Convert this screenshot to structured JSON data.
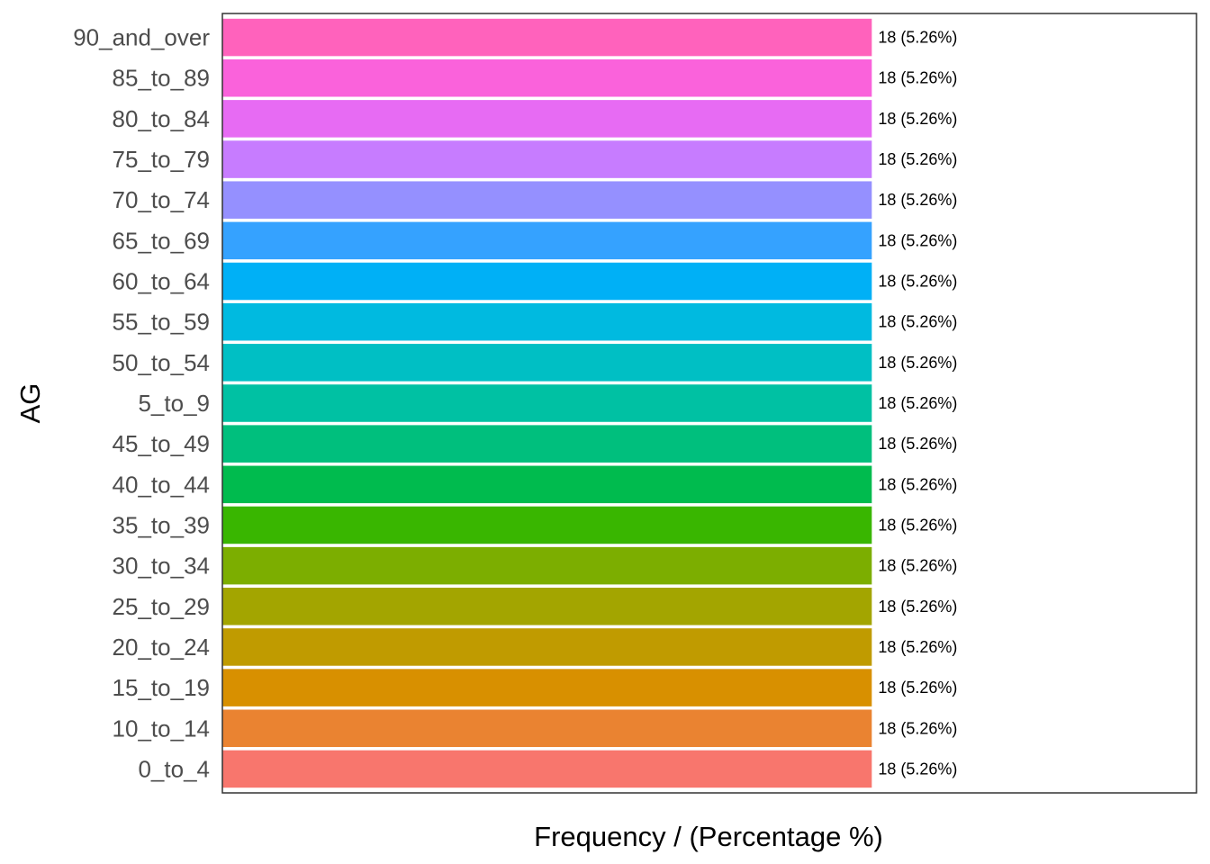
{
  "chart_data": {
    "type": "bar",
    "orientation": "horizontal",
    "xlabel": "Frequency / (Percentage %)",
    "ylabel": "AG",
    "categories": [
      "0_to_4",
      "10_to_14",
      "15_to_19",
      "20_to_24",
      "25_to_29",
      "30_to_34",
      "35_to_39",
      "40_to_44",
      "45_to_49",
      "5_to_9",
      "50_to_54",
      "55_to_59",
      "60_to_64",
      "65_to_69",
      "70_to_74",
      "75_to_79",
      "80_to_84",
      "85_to_89",
      "90_and_over"
    ],
    "values": [
      18,
      18,
      18,
      18,
      18,
      18,
      18,
      18,
      18,
      18,
      18,
      18,
      18,
      18,
      18,
      18,
      18,
      18,
      18
    ],
    "data_labels": [
      "18 (5.26%)",
      "18 (5.26%)",
      "18 (5.26%)",
      "18 (5.26%)",
      "18 (5.26%)",
      "18 (5.26%)",
      "18 (5.26%)",
      "18 (5.26%)",
      "18 (5.26%)",
      "18 (5.26%)",
      "18 (5.26%)",
      "18 (5.26%)",
      "18 (5.26%)",
      "18 (5.26%)",
      "18 (5.26%)",
      "18 (5.26%)",
      "18 (5.26%)",
      "18 (5.26%)",
      "18 (5.26%)"
    ],
    "colors": [
      "#F8766D",
      "#EA8331",
      "#D89000",
      "#C09B00",
      "#A3A500",
      "#7CAE00",
      "#39B600",
      "#00BB4E",
      "#00BF7D",
      "#00C1A3",
      "#00BFC4",
      "#00BAE0",
      "#00B0F6",
      "#35A2FF",
      "#9590FF",
      "#C77CFF",
      "#E76BF3",
      "#FA62DB",
      "#FF62BC"
    ],
    "xlim": [
      0,
      27
    ],
    "x_axis_ticks": false,
    "grid": false,
    "legend": "none"
  }
}
